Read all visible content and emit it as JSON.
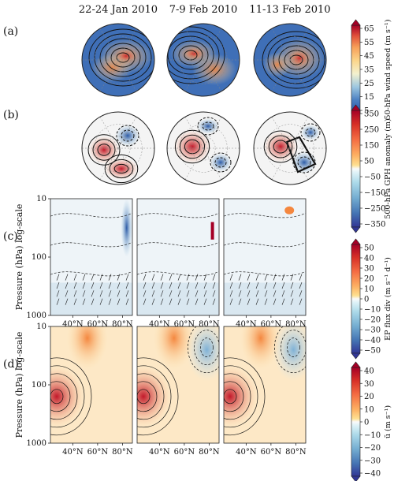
{
  "columns": [
    "22-24 Jan 2010",
    "7-9 Feb 2010",
    "11-13 Feb 2010"
  ],
  "rows": [
    {
      "letter": "(a)",
      "kind": "polar",
      "field": "wind"
    },
    {
      "letter": "(b)",
      "kind": "polar",
      "field": "gph"
    },
    {
      "letter": "(c)",
      "kind": "section",
      "field": "epflux"
    },
    {
      "letter": "(d)",
      "kind": "section",
      "field": "ubar"
    }
  ],
  "colorbars": [
    {
      "label": "50-hPa wind speed (m s⁻¹)",
      "ticks": [
        "65",
        "55",
        "45",
        "35",
        "25",
        "15",
        "5"
      ],
      "vmin": 5,
      "vmax": 65,
      "colormap": "sequential-blue-yellow-red"
    },
    {
      "label": "500-hPa GPH anomaly (m)",
      "ticks": [
        "350",
        "250",
        "150",
        "50",
        "−50",
        "−150",
        "−250",
        "−350"
      ],
      "vmin": -350,
      "vmax": 350,
      "colormap": "diverging-blue-red"
    },
    {
      "label": "EP flux div (m s⁻¹ d⁻¹)",
      "ticks": [
        "50",
        "40",
        "30",
        "20",
        "10",
        "0",
        "−10",
        "−20",
        "−30",
        "−40",
        "−50"
      ],
      "vmin": -50,
      "vmax": 50,
      "colormap": "diverging-blue-red"
    },
    {
      "label": "ū (m s⁻¹)",
      "ticks": [
        "40",
        "30",
        "20",
        "10",
        "0",
        "−10",
        "−20",
        "−30",
        "−40"
      ],
      "vmin": -40,
      "vmax": 40,
      "colormap": "diverging-blue-red"
    }
  ],
  "section_axes": {
    "ylabel": "Pressure (hPa) log-scale",
    "yticks": [
      "10",
      "100",
      "1000"
    ],
    "xticks": [
      "40°N",
      "60°N",
      "80°N"
    ]
  },
  "chart_data": [
    {
      "type": "heatmap",
      "title": "",
      "field": "50-hPa wind speed",
      "projection": "north polar stereographic",
      "panels": [
        "22-24 Jan 2010",
        "7-9 Feb 2010",
        "11-13 Feb 2010"
      ],
      "colorbar_range": [
        5,
        65
      ]
    },
    {
      "type": "heatmap",
      "title": "",
      "field": "500-hPa GPH anomaly",
      "projection": "north polar stereographic",
      "panels": [
        "22-24 Jan 2010",
        "7-9 Feb 2010",
        "11-13 Feb 2010"
      ],
      "colorbar_range": [
        -350,
        350
      ]
    },
    {
      "type": "heatmap",
      "title": "",
      "field": "EP flux divergence",
      "x": [
        "40°N",
        "60°N",
        "80°N"
      ],
      "y_scale": "log",
      "y_ticks": [
        10,
        100,
        1000
      ],
      "colorbar_range": [
        -50,
        50
      ]
    },
    {
      "type": "heatmap",
      "title": "",
      "field": "zonal-mean zonal wind",
      "x": [
        "40°N",
        "60°N",
        "80°N"
      ],
      "y_scale": "log",
      "y_ticks": [
        10,
        100,
        1000
      ],
      "colorbar_range": [
        -40,
        40
      ]
    }
  ]
}
